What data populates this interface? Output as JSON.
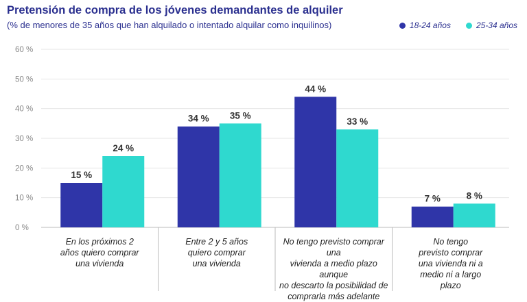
{
  "header": {
    "title": "Pretensión de compra de los jóvenes demandantes de alquiler",
    "subtitle": "(% de menores de 35 años que han alquilado o intentado alquilar como inquilinos)"
  },
  "legend": [
    {
      "label": "18-24 años",
      "color": "#2f35a8"
    },
    {
      "label": "25-34 años",
      "color": "#2fd9cf"
    }
  ],
  "chart_data": {
    "type": "bar",
    "title": "Pretensión de compra de los jóvenes demandantes de alquiler",
    "subtitle": "(% de menores de 35 años que han alquilado o intentado alquilar como inquilinos)",
    "categories": [
      "En los próximos 2 años quiero comprar una vivienda",
      "Entre 2 y 5 años quiero comprar una vivienda",
      "No tengo previsto comprar una vivienda a medio plazo aunque no descarto la posibilidad de comprarla más adelante",
      "No tengo previsto comprar una vivienda ni a medio ni a largo plazo"
    ],
    "category_lines": [
      [
        "En los próximos 2",
        "años quiero comprar",
        "una vivienda"
      ],
      [
        "Entre 2 y 5 años",
        "quiero comprar",
        "una vivienda"
      ],
      [
        "No tengo previsto comprar una",
        "vivienda a medio plazo aunque",
        "no descarto la posibilidad de",
        "comprarla más adelante"
      ],
      [
        "No tengo",
        "previsto comprar",
        "una vivienda ni a",
        "medio ni a largo",
        "plazo"
      ]
    ],
    "series": [
      {
        "name": "18-24 años",
        "values": [
          15,
          34,
          44,
          7
        ],
        "labels": [
          "15 %",
          "34 %",
          "44 %",
          "7 %"
        ],
        "color": "#2f35a8"
      },
      {
        "name": "25-34 años",
        "values": [
          24,
          35,
          33,
          8
        ],
        "labels": [
          "24 %",
          "35 %",
          "33 %",
          "8 %"
        ],
        "color": "#2fd9cf"
      }
    ],
    "yticks": [
      0,
      10,
      20,
      30,
      40,
      50,
      60
    ],
    "ytick_labels": [
      "0 %",
      "10 %",
      "20 %",
      "30 %",
      "40 %",
      "50 %",
      "60 %"
    ],
    "ylim": [
      0,
      60
    ],
    "grid": true,
    "legend_position": "top-right"
  }
}
